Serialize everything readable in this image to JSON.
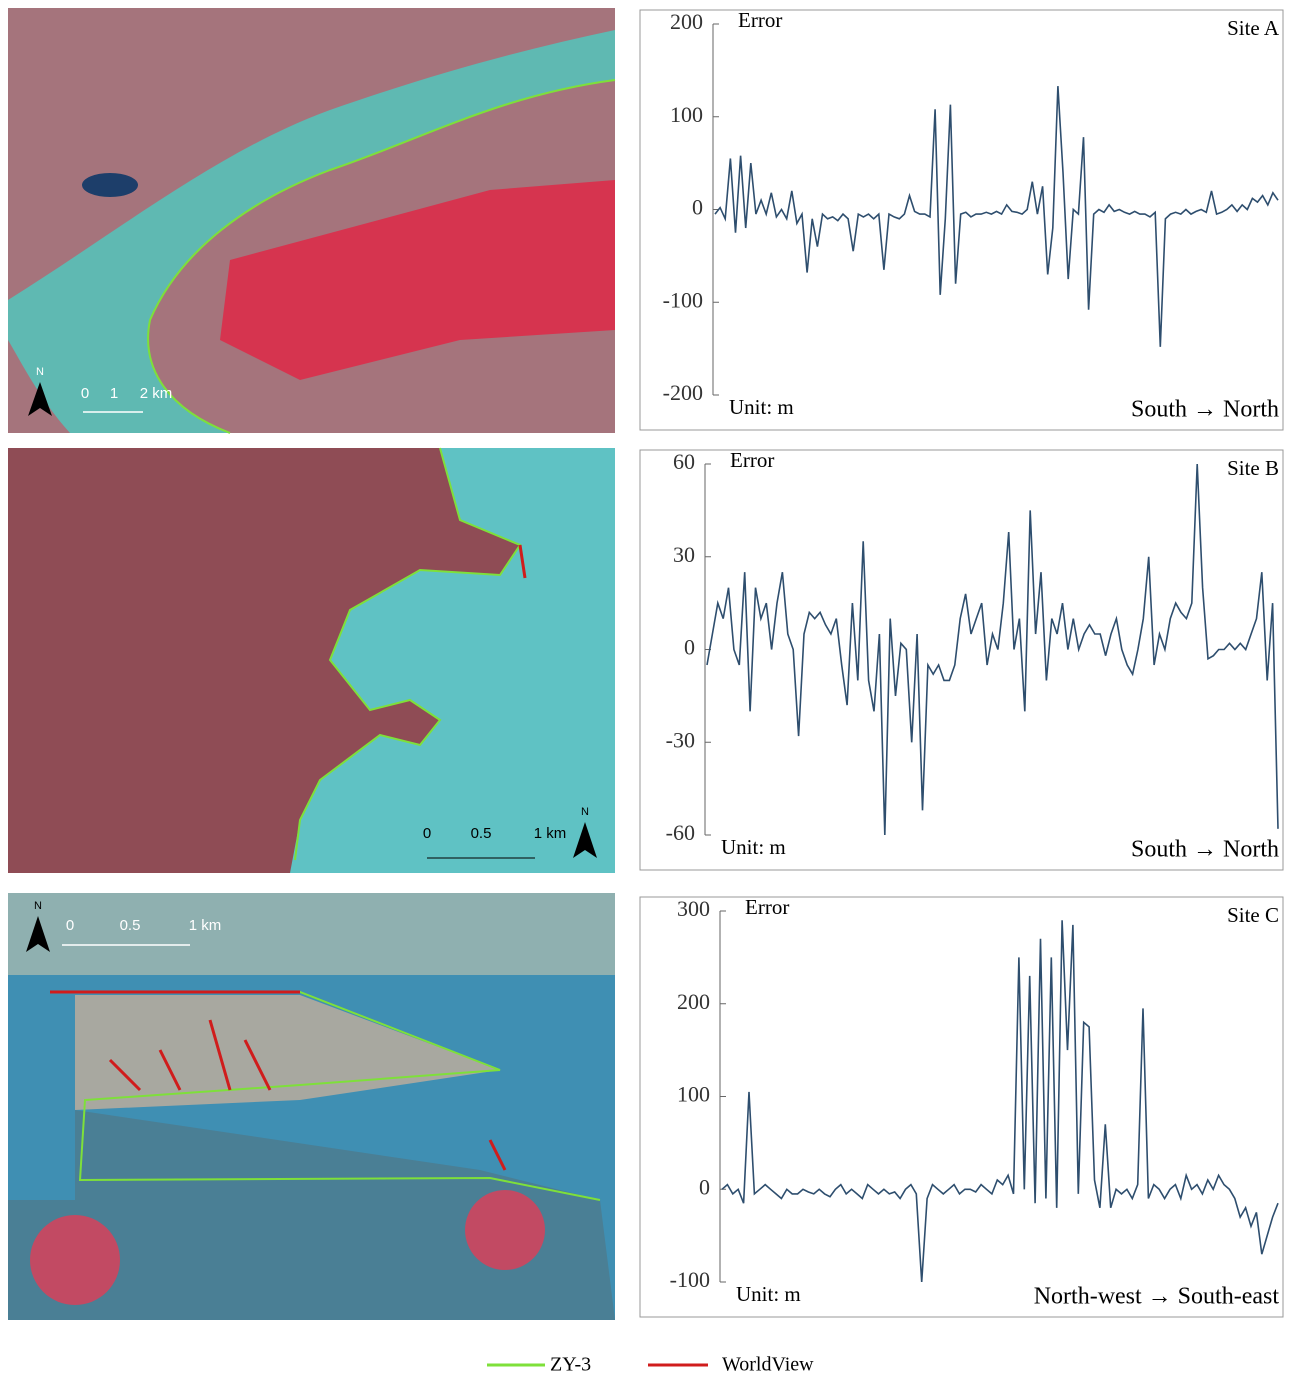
{
  "maps": [
    {
      "scale_labels": [
        "0",
        "1",
        "2 km"
      ],
      "north": "N"
    },
    {
      "scale_labels": [
        "0",
        "0.5",
        "1 km"
      ],
      "north": "N"
    },
    {
      "scale_labels": [
        "0",
        "0.5",
        "1 km"
      ],
      "north": "N"
    }
  ],
  "legend": [
    {
      "name": "ZY-3",
      "color": "#7ee03a"
    },
    {
      "name": "WorldView",
      "color": "#d01c1c"
    }
  ],
  "chart_data": [
    {
      "type": "line",
      "title": "Site A",
      "y_label": "Error",
      "annotation": "Unit: m",
      "x_label": "South → North",
      "ylim": [
        -200,
        200
      ],
      "yticks": [
        200,
        100,
        0,
        -100,
        -200
      ],
      "color": "#2e4e6e",
      "values": [
        -5,
        2,
        -10,
        55,
        -25,
        58,
        -20,
        50,
        -5,
        10,
        -5,
        18,
        -8,
        0,
        -10,
        20,
        -15,
        -5,
        -68,
        -10,
        -40,
        -5,
        -10,
        -8,
        -12,
        -5,
        -10,
        -45,
        -5,
        -8,
        -5,
        -10,
        -5,
        -65,
        -5,
        -8,
        -10,
        -5,
        15,
        -2,
        -5,
        -5,
        -8,
        108,
        -92,
        -10,
        113,
        -80,
        -5,
        -3,
        -8,
        -5,
        -5,
        -3,
        -5,
        -2,
        -5,
        5,
        -2,
        -3,
        -5,
        0,
        30,
        -5,
        25,
        -70,
        -20,
        133,
        40,
        -75,
        0,
        -5,
        78,
        -108,
        -5,
        0,
        -3,
        5,
        -2,
        0,
        -3,
        -5,
        -2,
        -5,
        -5,
        -8,
        -3,
        -148,
        -10,
        -5,
        -3,
        -5,
        0,
        -5,
        -2,
        0,
        -3,
        20,
        -5,
        -3,
        0,
        5,
        -2,
        5,
        0,
        12,
        8,
        15,
        5,
        18,
        10
      ]
    },
    {
      "type": "line",
      "title": "Site B",
      "y_label": "Error",
      "annotation": "Unit: m",
      "x_label": "South → North",
      "ylim": [
        -60,
        60
      ],
      "yticks": [
        60,
        30,
        0,
        -30,
        -60
      ],
      "color": "#2e4e6e",
      "values": [
        -5,
        5,
        15,
        10,
        20,
        0,
        -5,
        25,
        -20,
        20,
        10,
        15,
        0,
        15,
        25,
        5,
        0,
        -28,
        5,
        12,
        10,
        12,
        8,
        5,
        10,
        -5,
        -18,
        15,
        -10,
        35,
        -10,
        -20,
        5,
        -60,
        10,
        -15,
        2,
        0,
        -30,
        5,
        -52,
        -5,
        -8,
        -5,
        -10,
        -10,
        -5,
        10,
        18,
        5,
        10,
        15,
        -5,
        5,
        0,
        15,
        38,
        0,
        10,
        -20,
        45,
        5,
        25,
        -10,
        10,
        5,
        15,
        0,
        10,
        0,
        5,
        8,
        5,
        5,
        -2,
        5,
        10,
        0,
        -5,
        -8,
        0,
        10,
        30,
        -5,
        5,
        0,
        10,
        15,
        12,
        10,
        15,
        60,
        20,
        -3,
        -2,
        0,
        0,
        2,
        0,
        2,
        0,
        5,
        10,
        25,
        -10,
        15,
        -58
      ]
    },
    {
      "type": "line",
      "title": "Site C",
      "y_label": "Error",
      "annotation": "Unit: m",
      "x_label": "North-west → South-east",
      "ylim": [
        -100,
        300
      ],
      "yticks": [
        300,
        200,
        100,
        0,
        -100
      ],
      "color": "#2e4e6e",
      "values": [
        0,
        5,
        -5,
        0,
        -15,
        105,
        -5,
        0,
        5,
        0,
        -5,
        -10,
        0,
        -5,
        -5,
        0,
        -3,
        -5,
        0,
        -5,
        -8,
        0,
        5,
        -5,
        0,
        -5,
        -10,
        5,
        0,
        -5,
        0,
        -5,
        -3,
        -10,
        0,
        5,
        -5,
        -100,
        -10,
        5,
        0,
        -5,
        0,
        5,
        -5,
        0,
        0,
        -3,
        5,
        0,
        -5,
        10,
        5,
        15,
        -5,
        250,
        0,
        230,
        -15,
        270,
        -10,
        250,
        -20,
        290,
        150,
        285,
        -5,
        180,
        175,
        10,
        -20,
        70,
        -20,
        0,
        -5,
        0,
        -10,
        5,
        195,
        -10,
        5,
        0,
        -10,
        0,
        5,
        -10,
        15,
        0,
        5,
        -5,
        10,
        0,
        15,
        5,
        0,
        -10,
        -30,
        -20,
        -40,
        -25,
        -70,
        -50,
        -30,
        -15
      ]
    }
  ]
}
